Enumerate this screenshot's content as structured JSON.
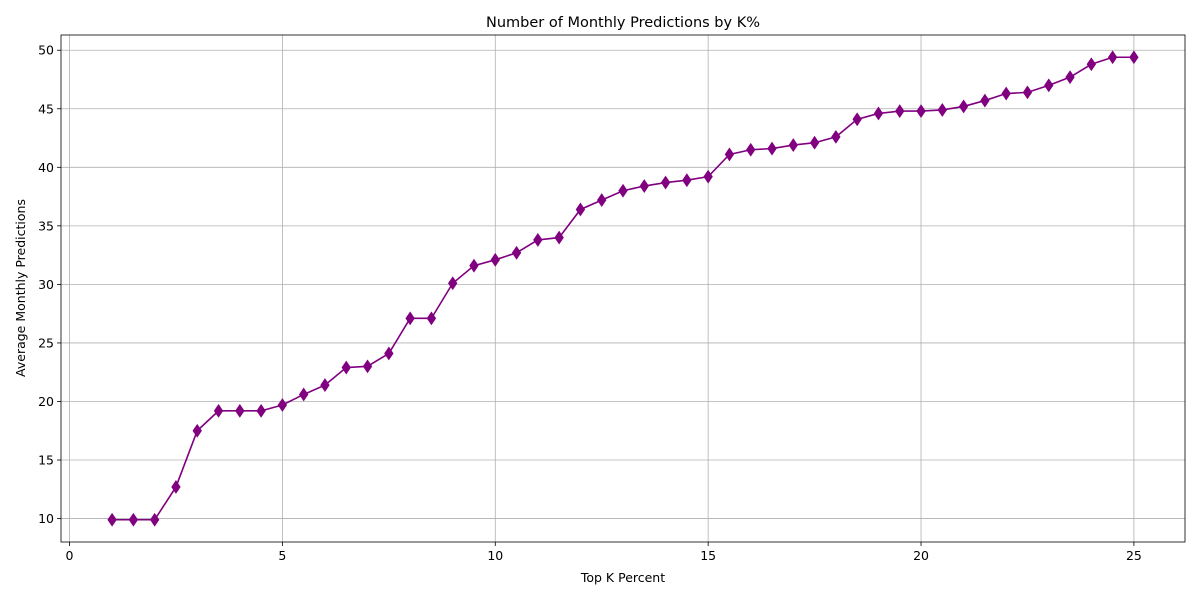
{
  "chart_data": {
    "type": "line",
    "title": "Number of Monthly Predictions by K%",
    "xlabel": "Top K Percent",
    "ylabel": "Average Monthly Predictions",
    "xlim": [
      -0.2,
      26.2
    ],
    "ylim": [
      8.0,
      51.3
    ],
    "xticks": [
      0,
      5,
      10,
      15,
      20,
      25
    ],
    "yticks": [
      10,
      15,
      20,
      25,
      30,
      35,
      40,
      45,
      50
    ],
    "grid": true,
    "color": "#800080",
    "marker": "thin-diamond",
    "series": [
      {
        "x": [
          1.0,
          1.5,
          2.0,
          2.5,
          3.0,
          3.5,
          4.0,
          4.5,
          5.0,
          5.5,
          6.0,
          6.5,
          7.0,
          7.5,
          8.0,
          8.5,
          9.0,
          9.5,
          10.0,
          10.5,
          11.0,
          11.5,
          12.0,
          12.5,
          13.0,
          13.5,
          14.0,
          14.5,
          15.0,
          15.5,
          16.0,
          16.5,
          17.0,
          17.5,
          18.0,
          18.5,
          19.0,
          19.5,
          20.0,
          20.5,
          21.0,
          21.5,
          22.0,
          22.5,
          23.0,
          23.5,
          24.0,
          24.5,
          25.0
        ],
        "y": [
          9.9,
          9.9,
          9.9,
          12.7,
          17.5,
          19.2,
          19.2,
          19.2,
          19.7,
          20.6,
          21.4,
          22.9,
          23.0,
          24.1,
          27.1,
          27.1,
          30.1,
          31.6,
          32.1,
          32.7,
          33.8,
          34.0,
          36.4,
          37.2,
          38.0,
          38.4,
          38.7,
          38.9,
          39.2,
          41.1,
          41.5,
          41.6,
          41.9,
          42.1,
          42.6,
          44.1,
          44.6,
          44.8,
          44.8,
          44.9,
          45.2,
          45.7,
          46.3,
          46.4,
          47.0,
          47.7,
          48.8,
          49.4,
          49.4
        ]
      }
    ]
  }
}
